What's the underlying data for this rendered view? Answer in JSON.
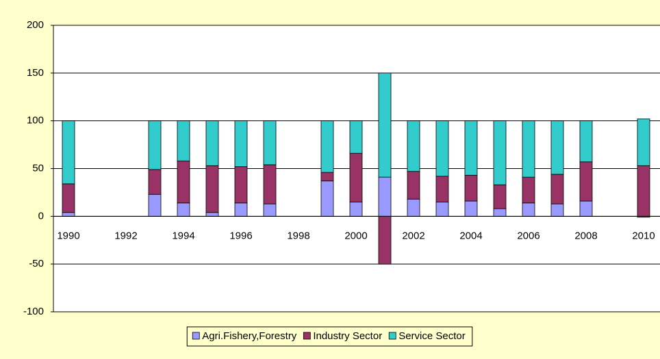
{
  "chart_data": {
    "type": "stacked-bar",
    "categories": [
      "1990",
      null,
      "1992",
      null,
      "1994",
      null,
      "1996",
      null,
      "1998",
      null,
      "2000",
      null,
      "2002",
      null,
      "2004",
      null,
      "2006",
      null,
      "2008",
      null,
      "2010"
    ],
    "series": [
      {
        "name": "Agri.Fishery,Forestry",
        "color": "#9999ff",
        "values": [
          4,
          null,
          null,
          23,
          14,
          4,
          14,
          13,
          null,
          37,
          15,
          41,
          18,
          15,
          16,
          8,
          14,
          13,
          16,
          null,
          -1
        ]
      },
      {
        "name": "Industry Sector",
        "color": "#993366",
        "values": [
          30,
          null,
          null,
          26,
          44,
          49,
          38,
          41,
          null,
          9,
          51,
          -50,
          29,
          27,
          27,
          25,
          27,
          31,
          41,
          null,
          53
        ]
      },
      {
        "name": "Service Sector",
        "color": "#33cccc",
        "values": [
          66,
          null,
          null,
          51,
          42,
          47,
          48,
          46,
          null,
          54,
          34,
          109,
          53,
          58,
          57,
          67,
          59,
          56,
          43,
          null,
          49
        ]
      }
    ],
    "ylim": [
      -100,
      200
    ],
    "yticks": [
      -100,
      -50,
      0,
      50,
      100,
      150,
      200
    ],
    "grid": true,
    "legend": "bottom"
  }
}
